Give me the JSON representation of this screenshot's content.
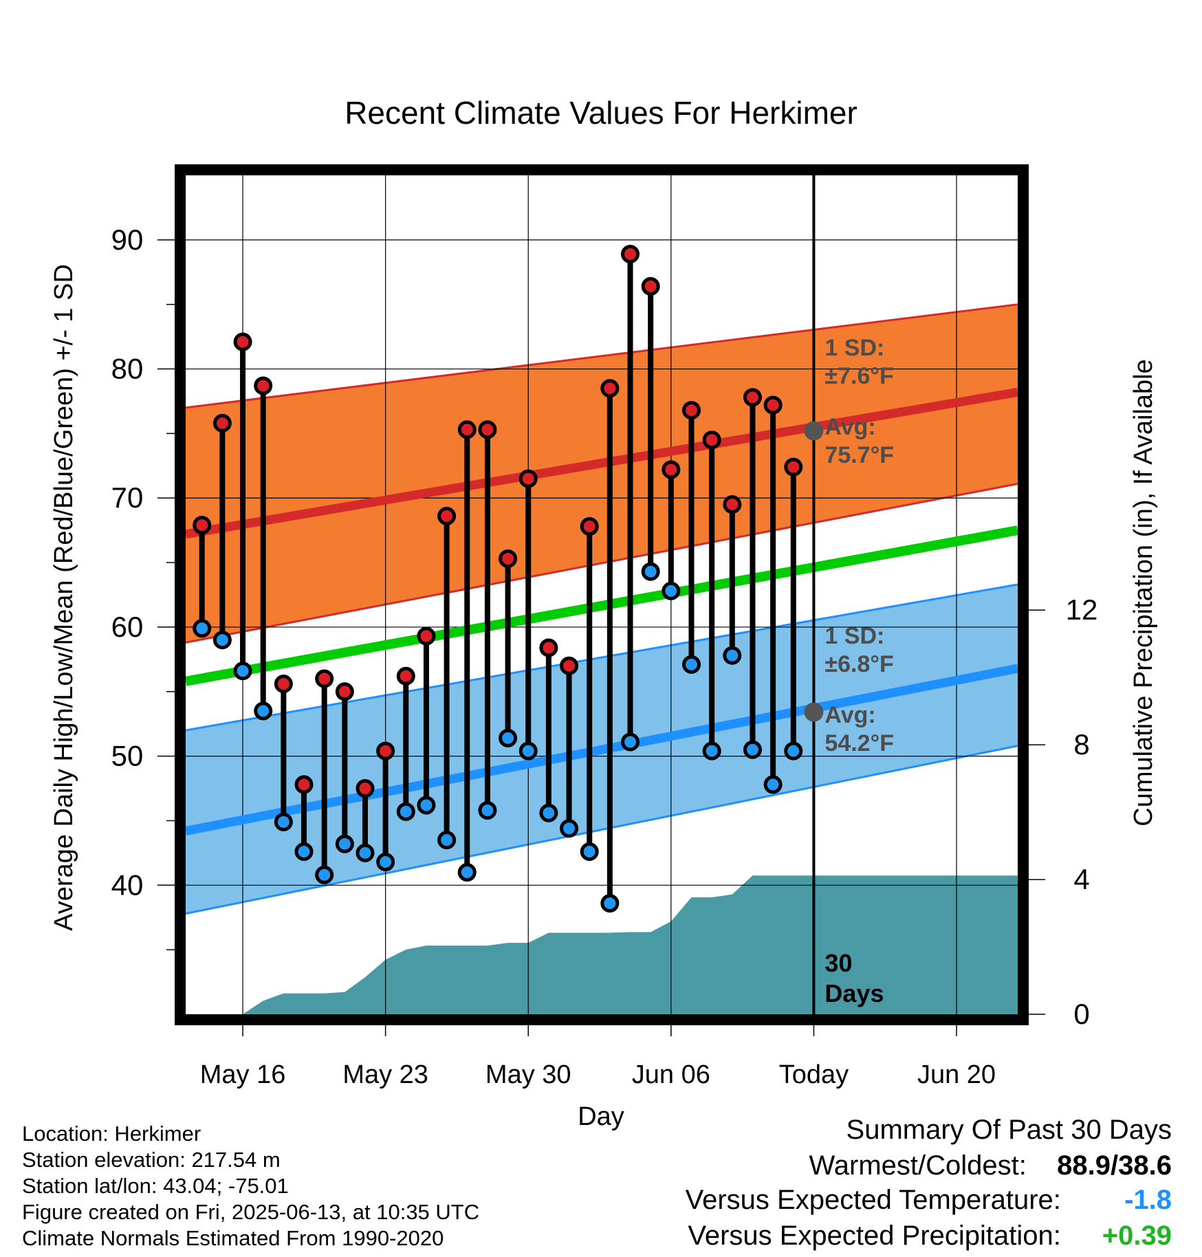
{
  "chart_data": {
    "type": "line",
    "title": "Recent Climate Values For Herkimer",
    "xlabel": "Day",
    "ylabel": "Average Daily High/Low/Mean (Red/Blue/Green) +/- 1 SD",
    "y2label": "Cumulative Precipitation (in), If Available",
    "ylim": [
      30,
      95
    ],
    "y2lim": [
      0,
      17.5
    ],
    "y_ticks": [
      "90",
      "80",
      "70",
      "60",
      "50",
      "40"
    ],
    "y_tick_values": [
      90,
      80,
      70,
      60,
      50,
      40
    ],
    "y2_ticks": [
      "12",
      "8",
      "4",
      "0"
    ],
    "y2_tick_values": [
      12,
      8,
      4,
      0
    ],
    "x_ticks": [
      {
        "label": "May 16",
        "day": 3
      },
      {
        "label": "May 23",
        "day": 10
      },
      {
        "label": "May 30",
        "day": 17
      },
      {
        "label": "Jun 06",
        "day": 24
      },
      {
        "label": "Today",
        "day": 31
      },
      {
        "label": "Jun 20",
        "day": 38
      }
    ],
    "xlim": [
      0.2,
      41
    ],
    "today_day": 31,
    "days_label": [
      "30",
      "Days"
    ],
    "high_series": {
      "name": "High",
      "color": "#d92026",
      "x": [
        1,
        2,
        3,
        4,
        5,
        6,
        7,
        8,
        9,
        10,
        11,
        12,
        13,
        14,
        15,
        16,
        17,
        18,
        19,
        20,
        21,
        22,
        23,
        24,
        25,
        26,
        27,
        28,
        29,
        30
      ],
      "values": [
        67.9,
        75.8,
        82.1,
        78.7,
        55.6,
        47.8,
        56.0,
        55.0,
        47.5,
        50.4,
        56.2,
        59.3,
        68.6,
        75.3,
        75.3,
        65.3,
        71.5,
        58.4,
        57.0,
        67.8,
        78.5,
        88.9,
        86.4,
        72.2,
        76.8,
        74.5,
        69.5,
        77.8,
        77.2,
        72.4
      ]
    },
    "low_series": {
      "name": "Low",
      "color": "#2196f3",
      "x": [
        1,
        2,
        3,
        4,
        5,
        6,
        7,
        8,
        9,
        10,
        11,
        12,
        13,
        14,
        15,
        16,
        17,
        18,
        19,
        20,
        21,
        22,
        23,
        24,
        25,
        26,
        27,
        28,
        29,
        30
      ],
      "values": [
        59.9,
        59.0,
        56.6,
        53.5,
        44.9,
        42.6,
        40.8,
        43.2,
        42.5,
        41.8,
        45.7,
        46.2,
        43.5,
        41.0,
        45.8,
        51.4,
        50.4,
        45.6,
        44.4,
        42.6,
        38.6,
        51.1,
        64.3,
        62.8,
        57.1,
        50.4,
        57.8,
        50.5,
        47.8,
        50.4
      ]
    },
    "normals": {
      "x": [
        0.2,
        41
      ],
      "high_avg": [
        67.2,
        78.2
      ],
      "high_sd_upper": [
        77.0,
        85.0
      ],
      "high_sd_lower": [
        58.8,
        71.1
      ],
      "mean_avg": [
        55.8,
        67.5
      ],
      "low_avg": [
        44.2,
        56.8
      ],
      "low_sd_upper": [
        52.0,
        63.3
      ],
      "low_sd_lower": [
        37.8,
        50.8
      ]
    },
    "precip": {
      "name": "Cumulative Precipitation",
      "x": [
        3,
        4,
        5,
        6,
        7,
        8,
        9,
        10,
        11,
        12,
        13,
        14,
        15,
        16,
        17,
        18,
        19,
        20,
        21,
        22,
        23,
        24,
        25,
        26,
        27,
        28,
        29,
        30,
        31,
        41
      ],
      "values": [
        0.0,
        0.4,
        0.62,
        0.62,
        0.62,
        0.66,
        1.1,
        1.62,
        1.92,
        2.04,
        2.04,
        2.04,
        2.04,
        2.12,
        2.12,
        2.42,
        2.42,
        2.42,
        2.42,
        2.44,
        2.44,
        2.76,
        3.47,
        3.47,
        3.56,
        4.12,
        4.12,
        4.12,
        4.12,
        4.12
      ]
    },
    "annotations": {
      "high_sd": [
        "1 SD:",
        "±7.6°F"
      ],
      "high_avg": [
        "Avg:",
        "75.7°F"
      ],
      "low_sd": [
        "1 SD:",
        "±6.8°F"
      ],
      "low_avg": [
        "Avg:",
        "54.2°F"
      ]
    },
    "colors": {
      "high_band": "#f47c30",
      "high_line": "#d42a2a",
      "mean_line": "#00cc00",
      "low_band": "#7fc1ea",
      "low_line": "#1e90ff",
      "precip": "#4a9aa5",
      "annotation": "#4d4d4d"
    }
  },
  "info": {
    "location": "Location: Herkimer",
    "elevation": "Station elevation: 217.54 m",
    "latlon": "Station lat/lon: 43.04; -75.01",
    "created": "Figure created on Fri, 2025-06-13, at 10:35 UTC",
    "normals": "Climate Normals Estimated From 1990-2020"
  },
  "summary": {
    "title": "Summary Of Past 30 Days",
    "warm_cold_label": "Warmest/Coldest:",
    "warm_cold_value": "88.9/38.6",
    "temp_label": "Versus Expected Temperature:",
    "temp_value": "-1.8",
    "temp_color": "#1e90ff",
    "precip_label": "Versus Expected Precipitation:",
    "precip_value": "+0.39",
    "precip_color": "#22b322"
  }
}
